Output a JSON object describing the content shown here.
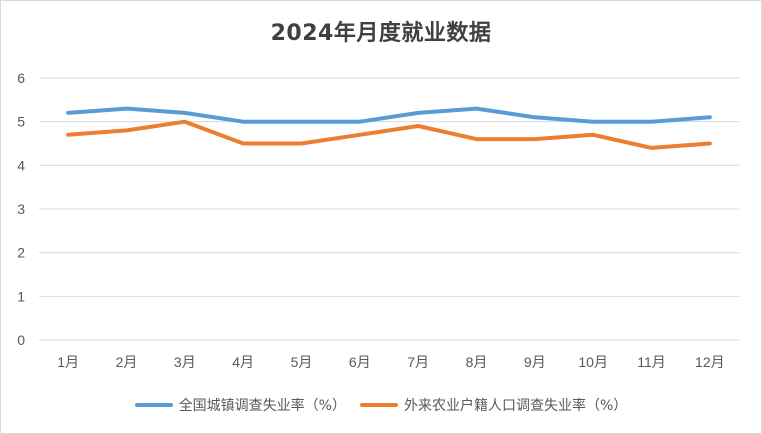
{
  "chart_data": {
    "type": "line",
    "title": "2024年月度就业数据",
    "categories": [
      "1月",
      "2月",
      "3月",
      "4月",
      "5月",
      "6月",
      "7月",
      "8月",
      "9月",
      "10月",
      "11月",
      "12月"
    ],
    "series": [
      {
        "name": "全国城镇调查失业率（%）",
        "color": "#5b9bd5",
        "values": [
          5.2,
          5.3,
          5.2,
          5.0,
          5.0,
          5.0,
          5.2,
          5.3,
          5.1,
          5.0,
          5.0,
          5.1
        ]
      },
      {
        "name": "外来农业户籍人口调查失业率（%）",
        "color": "#ed7d31",
        "values": [
          4.7,
          4.8,
          5.0,
          4.5,
          4.5,
          4.7,
          4.9,
          4.6,
          4.6,
          4.7,
          4.4,
          4.5
        ]
      }
    ],
    "y_ticks": [
      "0",
      "1",
      "2",
      "3",
      "4",
      "5",
      "6"
    ],
    "ylim": [
      0,
      6
    ],
    "grid": true,
    "legend_position": "bottom"
  }
}
